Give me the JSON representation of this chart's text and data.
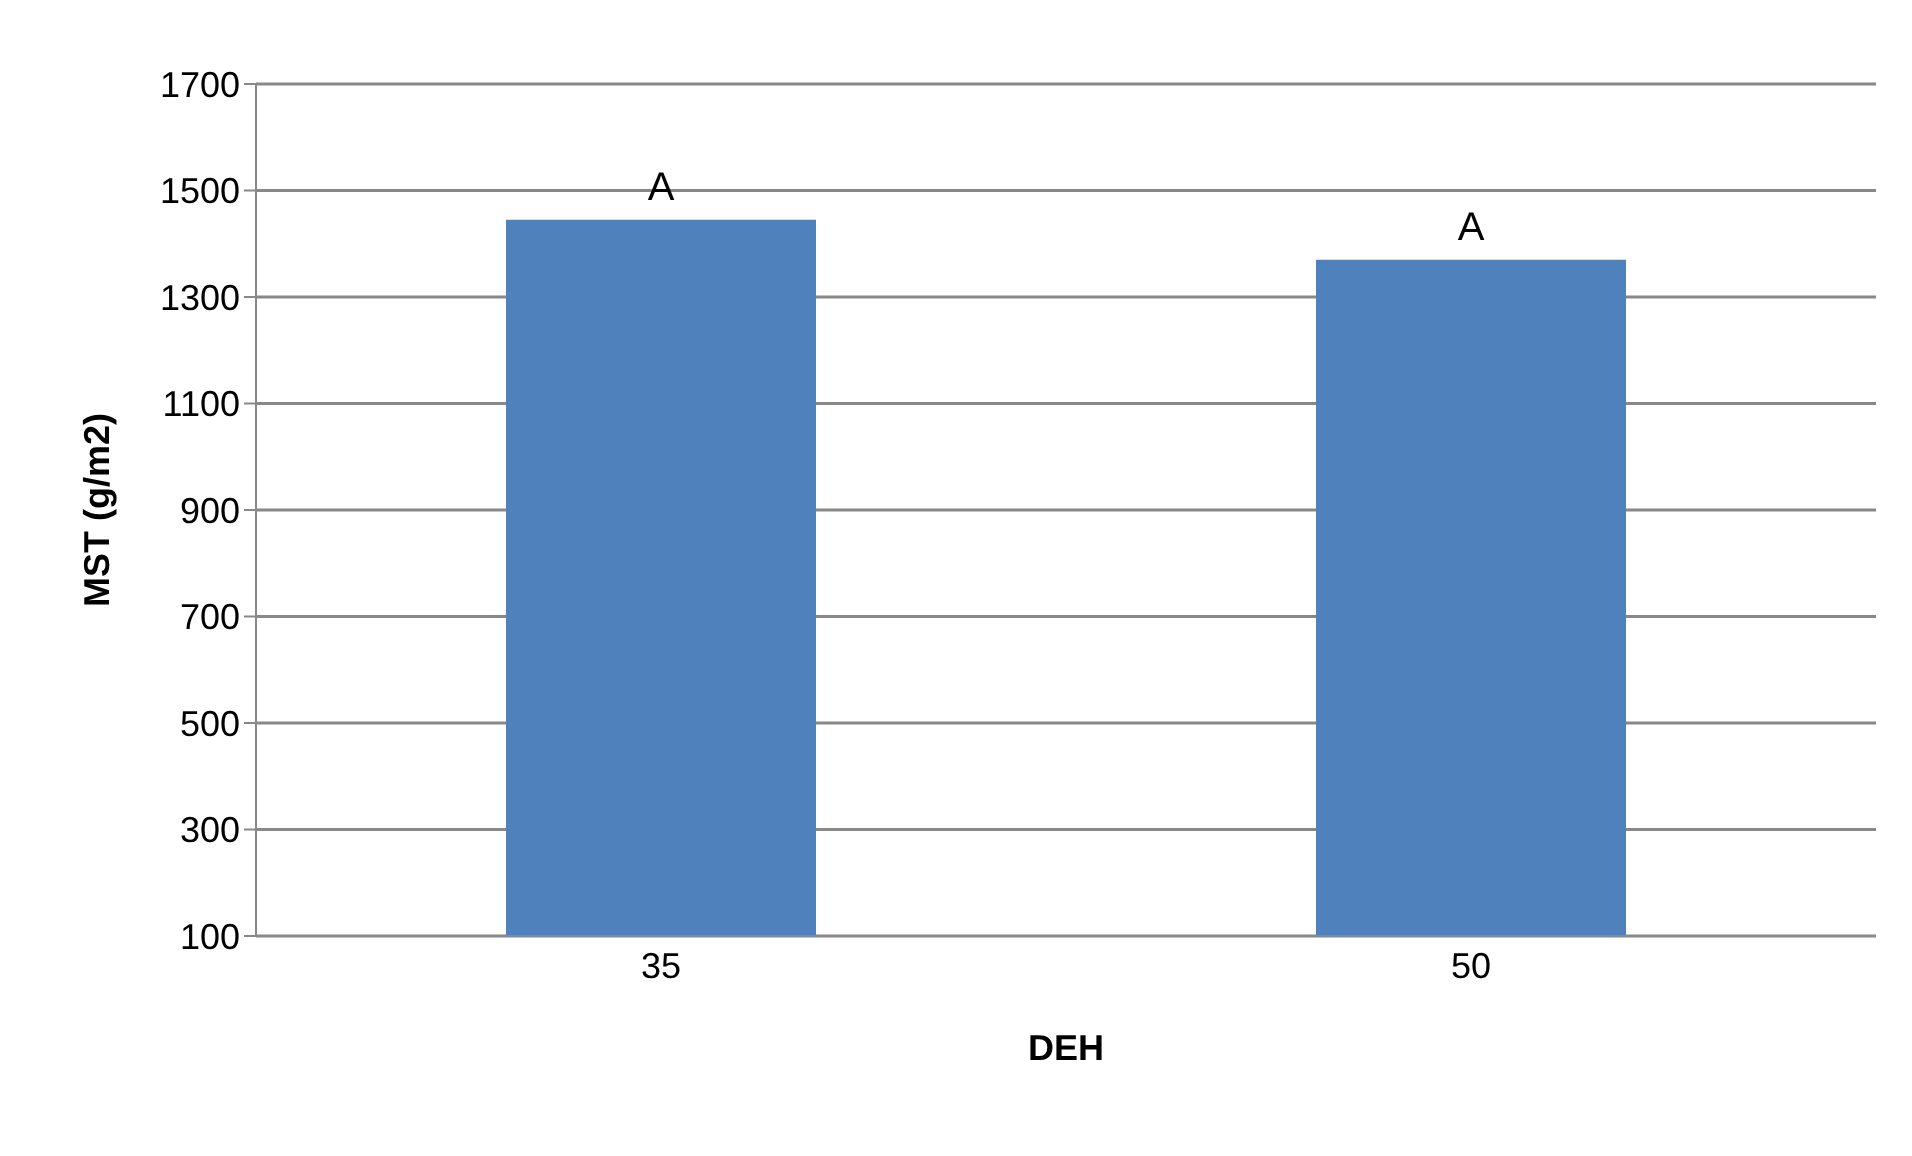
{
  "chart_data": {
    "type": "bar",
    "xlabel": "DEH",
    "ylabel": "MST (g/m2)",
    "categories": [
      "35",
      "50"
    ],
    "values": [
      1445,
      1370
    ],
    "color": "#4f81bd",
    "ylim": [
      100,
      1700
    ],
    "yticks": [
      100,
      300,
      500,
      700,
      900,
      1100,
      1300,
      1500,
      1700
    ],
    "grid": "y",
    "annotations": [
      {
        "text": "A",
        "x": "35",
        "y": 1445
      },
      {
        "text": "A",
        "x": "50",
        "y": 1370
      }
    ]
  }
}
